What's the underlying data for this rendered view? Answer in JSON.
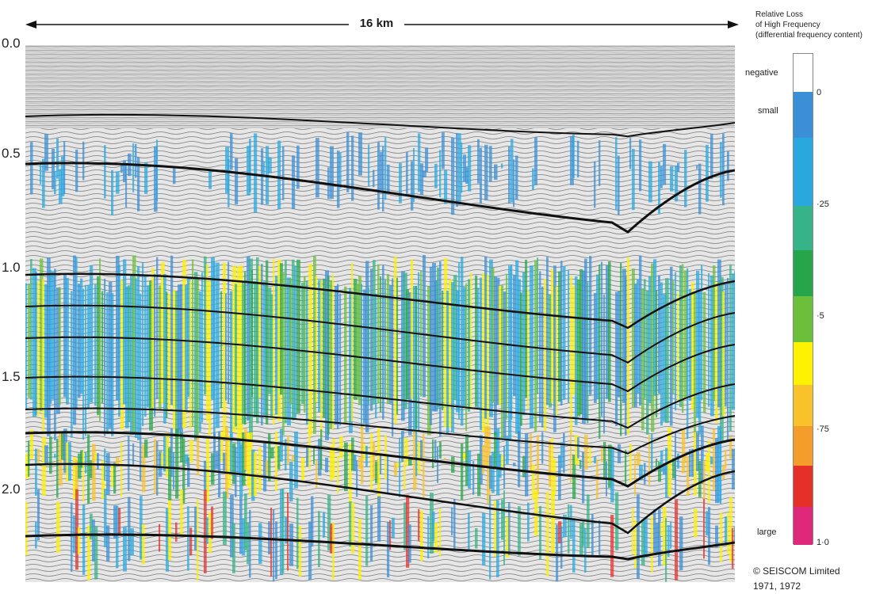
{
  "scale": {
    "label": "16 km"
  },
  "time_axis": {
    "ticks": [
      "0.0",
      "0.5",
      "1.0",
      "1.5",
      "2.0"
    ]
  },
  "legend": {
    "title_lines": [
      "Relative Loss",
      "of High Frequency",
      "(differential frequency content)"
    ],
    "word_negative": "negative",
    "word_small": "small",
    "word_large": "large",
    "tick_labels": [
      "0",
      "·25",
      "·5",
      "·75",
      "1·0"
    ],
    "colors": [
      "#ffffff",
      "#3a8fd6",
      "#29a8e0",
      "#36b389",
      "#27a54a",
      "#6cbf3a",
      "#fff200",
      "#f9c22a",
      "#f59d2a",
      "#e5302a",
      "#e0287a"
    ]
  },
  "copyright": {
    "line1": "© SEISCOM Limited",
    "line2": "1971, 1972"
  }
}
